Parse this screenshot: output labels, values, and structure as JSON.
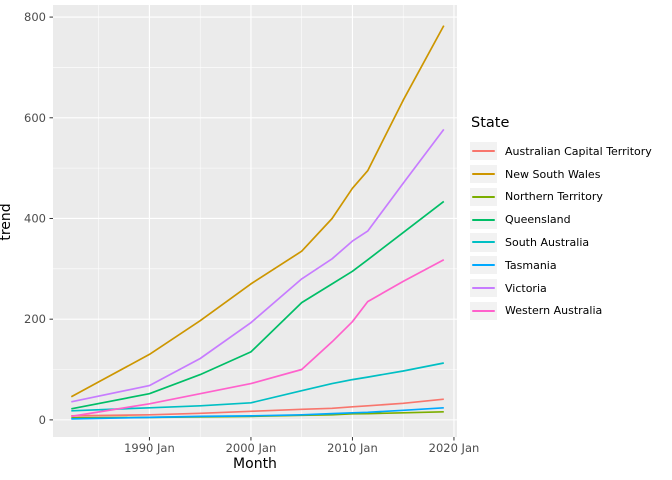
{
  "figure": {
    "xlabel": "Month",
    "ylabel": "trend",
    "legend_title": "State"
  },
  "chart_data": {
    "type": "line",
    "title": "",
    "xlabel": "Month",
    "ylabel": "trend",
    "legend_title": "State",
    "legend_position": "right",
    "grid": true,
    "panel_bg": "#EBEBEB",
    "grid_color": "#FFFFFF",
    "tick_mark_color": "#333333",
    "tick_label_color": "#4D4D4D",
    "x_unit": "decimal year (monthly time index)",
    "x_domain": [
      1980.5,
      2020.3
    ],
    "y_domain": [
      -34,
      824
    ],
    "x_ticks": [
      {
        "value": 1990,
        "label": "1990 Jan"
      },
      {
        "value": 2000,
        "label": "2000 Jan"
      },
      {
        "value": 2010,
        "label": "2010 Jan"
      },
      {
        "value": 2020,
        "label": "2020 Jan"
      }
    ],
    "x_minor_ticks": [
      1985,
      1995,
      2005,
      2015
    ],
    "y_ticks": [
      {
        "value": 0,
        "label": "0"
      },
      {
        "value": 200,
        "label": "200"
      },
      {
        "value": 400,
        "label": "400"
      },
      {
        "value": 600,
        "label": "600"
      },
      {
        "value": 800,
        "label": "800"
      }
    ],
    "y_minor_ticks": [
      100,
      300,
      500,
      700
    ],
    "x": [
      1982.3,
      1990,
      1995,
      2000,
      2005,
      2008,
      2010,
      2011.5,
      2015,
      2019
    ],
    "series": [
      {
        "name": "Australian Capital Territory",
        "color": "#F8766D",
        "values": [
          8,
          10,
          13,
          17,
          21,
          23,
          26,
          28,
          33,
          41
        ]
      },
      {
        "name": "New South Wales",
        "color": "#CD9600",
        "values": [
          46,
          130,
          197,
          270,
          335,
          400,
          460,
          495,
          635,
          783
        ]
      },
      {
        "name": "Northern Territory",
        "color": "#7CAE00",
        "values": [
          4,
          5,
          6,
          7,
          9,
          10,
          12,
          12.5,
          14,
          16
        ]
      },
      {
        "name": "Queensland",
        "color": "#00BE67",
        "values": [
          22,
          52,
          90,
          135,
          233,
          270,
          295,
          318,
          372,
          434
        ]
      },
      {
        "name": "South Australia",
        "color": "#00BFC4",
        "values": [
          18,
          24,
          28,
          34,
          58,
          72,
          80,
          85,
          97,
          113
        ]
      },
      {
        "name": "Tasmania",
        "color": "#00A9FF",
        "values": [
          2,
          5,
          7,
          8,
          10,
          12.5,
          14,
          15,
          19,
          24
        ]
      },
      {
        "name": "Victoria",
        "color": "#C77CFF",
        "values": [
          36,
          68,
          122,
          193,
          280,
          320,
          355,
          375,
          470,
          577
        ]
      },
      {
        "name": "Western Australia",
        "color": "#FF61CC",
        "values": [
          7,
          32,
          52,
          72,
          100,
          155,
          195,
          235,
          275,
          318
        ]
      }
    ]
  }
}
